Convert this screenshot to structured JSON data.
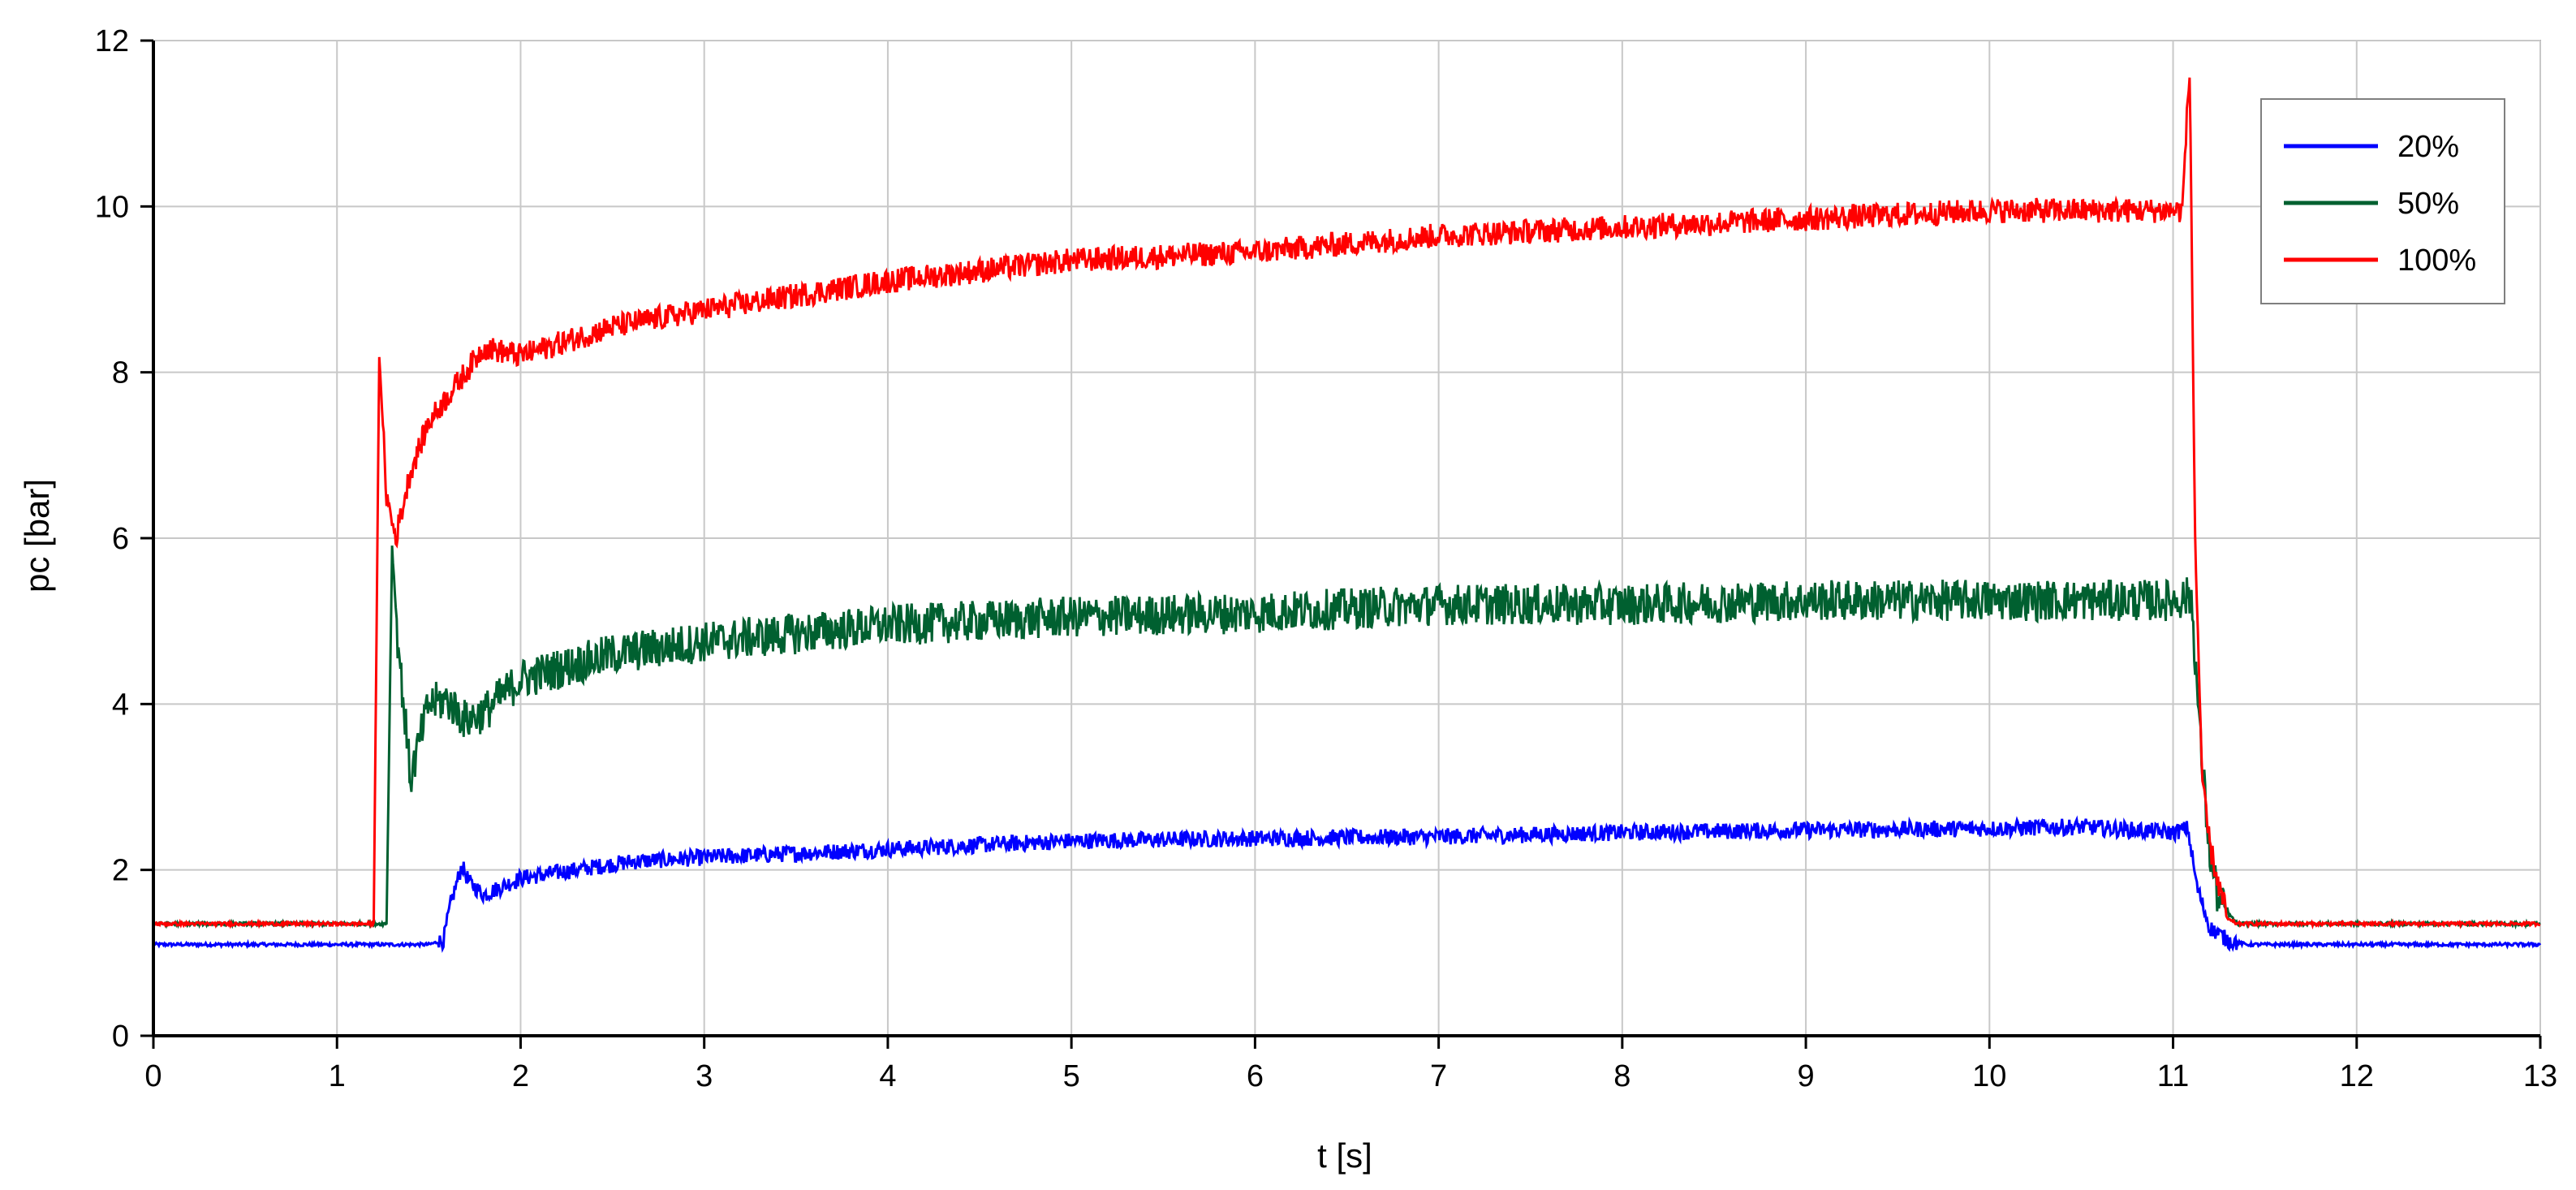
{
  "chart_data": {
    "type": "line",
    "xlabel": "t [s]",
    "ylabel": "pc [bar]",
    "xlim": [
      0,
      13
    ],
    "ylim": [
      0,
      12
    ],
    "x_ticks": [
      "0",
      "1",
      "2",
      "3",
      "4",
      "5",
      "6",
      "7",
      "8",
      "9",
      "10",
      "11",
      "12",
      "13"
    ],
    "y_ticks": [
      "0",
      "2",
      "4",
      "6",
      "8",
      "10",
      "12"
    ],
    "grid": true,
    "legend_position": "top-right",
    "series": [
      {
        "name": "20%",
        "color": "#0000ff",
        "x": [
          0,
          1.0,
          1.5,
          1.58,
          1.62,
          1.68,
          1.72,
          1.8,
          2.0,
          2.3,
          2.6,
          3.0,
          3.5,
          4.0,
          5.0,
          6.0,
          7.0,
          8.0,
          9.0,
          10.0,
          10.5,
          11.0,
          11.08,
          11.13,
          11.2,
          11.3,
          11.4,
          12.0,
          13.0
        ],
        "y": [
          1.1,
          1.1,
          1.1,
          1.15,
          1.6,
          2.05,
          1.85,
          1.7,
          1.9,
          2.0,
          2.1,
          2.15,
          2.2,
          2.25,
          2.35,
          2.38,
          2.4,
          2.45,
          2.48,
          2.5,
          2.52,
          2.45,
          2.5,
          1.8,
          1.3,
          1.15,
          1.1,
          1.1,
          1.1
        ],
        "noise": 0.1
      },
      {
        "name": "50%",
        "color": "#006030",
        "x": [
          0,
          1.0,
          1.27,
          1.3,
          1.33,
          1.4,
          1.5,
          1.6,
          1.7,
          1.8,
          2.0,
          2.5,
          3.0,
          4.0,
          5.0,
          6.0,
          7.0,
          8.0,
          9.0,
          10.0,
          11.0,
          11.1,
          11.15,
          11.2,
          11.25,
          11.35,
          12.0,
          13.0
        ],
        "y": [
          1.35,
          1.35,
          1.35,
          5.9,
          4.8,
          3.1,
          4.0,
          4.05,
          3.8,
          3.9,
          4.3,
          4.6,
          4.75,
          4.95,
          5.05,
          5.1,
          5.2,
          5.2,
          5.25,
          5.25,
          5.25,
          5.3,
          3.5,
          2.2,
          1.6,
          1.35,
          1.35,
          1.35
        ],
        "noise": 0.25
      },
      {
        "name": "100%",
        "color": "#ff0000",
        "x": [
          0,
          1.0,
          1.2,
          1.23,
          1.27,
          1.32,
          1.4,
          1.5,
          1.7,
          1.8,
          1.9,
          2.0,
          2.5,
          3.0,
          4.0,
          5.0,
          6.0,
          7.0,
          8.0,
          9.0,
          10.0,
          11.05,
          11.09,
          11.12,
          11.16,
          11.2,
          11.25,
          11.3,
          11.35,
          12.0,
          13.0
        ],
        "y": [
          1.35,
          1.35,
          1.35,
          8.2,
          6.5,
          6.0,
          6.8,
          7.4,
          8.0,
          8.3,
          8.25,
          8.2,
          8.55,
          8.75,
          9.1,
          9.35,
          9.45,
          9.65,
          9.75,
          9.85,
          9.95,
          9.95,
          11.7,
          6.0,
          3.0,
          2.3,
          1.8,
          1.4,
          1.35,
          1.35,
          1.35
        ],
        "noise": 0.15
      }
    ]
  }
}
